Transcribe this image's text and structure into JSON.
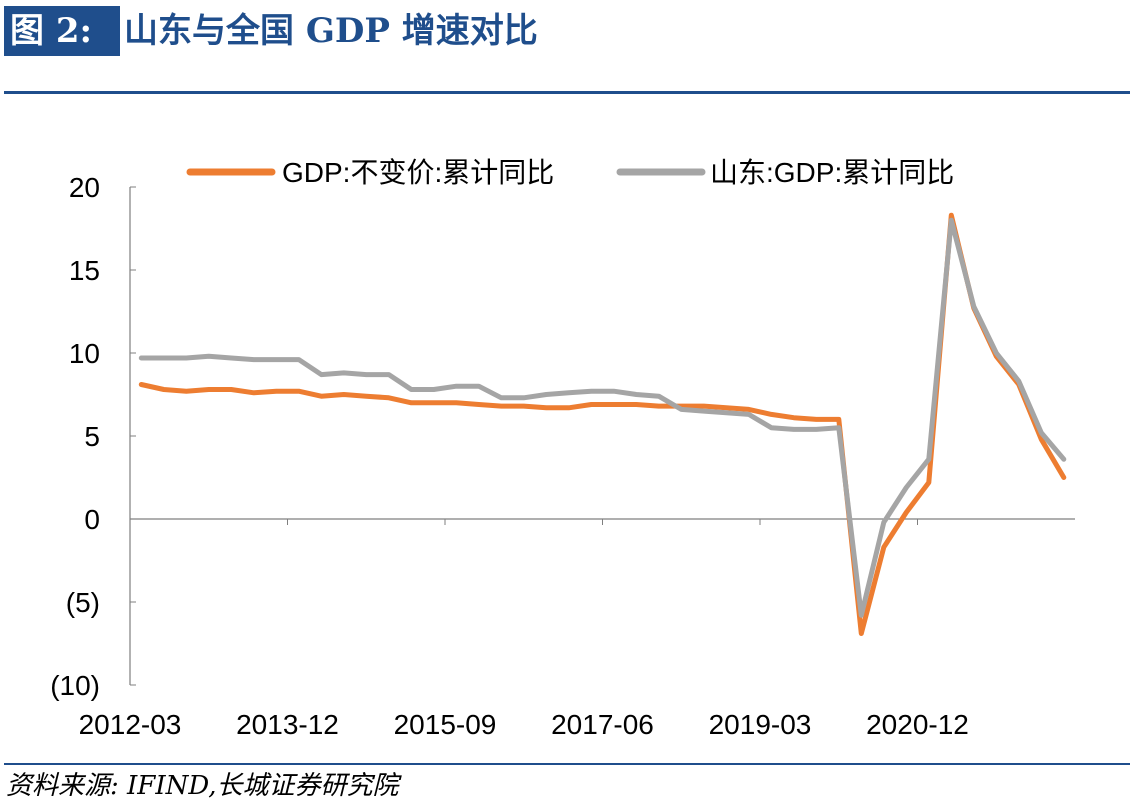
{
  "header": {
    "figure_label": "图 2:",
    "title": "山东与全国 GDP 增速对比"
  },
  "footer": {
    "source": "资料来源: IFIND,长城证券研究院"
  },
  "colors": {
    "accent": "#1f4e8c",
    "national": "#ed7d31",
    "shandong": "#a5a5a5",
    "negative_label": "#ff0000"
  },
  "chart_data": {
    "type": "line",
    "title": "",
    "xlabel": "",
    "ylabel": "",
    "ylim": [
      -10,
      20
    ],
    "yticks": [
      {
        "value": 20,
        "label": "20",
        "negative": false
      },
      {
        "value": 15,
        "label": "15",
        "negative": false
      },
      {
        "value": 10,
        "label": "10",
        "negative": false
      },
      {
        "value": 5,
        "label": "5",
        "negative": false
      },
      {
        "value": 0,
        "label": "0",
        "negative": false
      },
      {
        "value": -5,
        "label": "(5)",
        "negative": true
      },
      {
        "value": -10,
        "label": "(10)",
        "negative": true
      }
    ],
    "xticks": [
      "2012-03",
      "2013-12",
      "2015-09",
      "2017-06",
      "2019-03",
      "2020-12"
    ],
    "grid": false,
    "legend_position": "top",
    "x": [
      "2012-03",
      "2012-06",
      "2012-09",
      "2012-12",
      "2013-03",
      "2013-06",
      "2013-09",
      "2013-12",
      "2014-03",
      "2014-06",
      "2014-09",
      "2014-12",
      "2015-03",
      "2015-06",
      "2015-09",
      "2015-12",
      "2016-03",
      "2016-06",
      "2016-09",
      "2016-12",
      "2017-03",
      "2017-06",
      "2017-09",
      "2017-12",
      "2018-03",
      "2018-06",
      "2018-09",
      "2018-12",
      "2019-03",
      "2019-06",
      "2019-09",
      "2019-12",
      "2020-03",
      "2020-06",
      "2020-09",
      "2020-12",
      "2021-03",
      "2021-06",
      "2021-09",
      "2021-12",
      "2022-03",
      "2022-06"
    ],
    "series": [
      {
        "name": "GDP:不变价:累计同比",
        "color": "#ed7d31",
        "values": [
          8.1,
          7.8,
          7.7,
          7.8,
          7.8,
          7.6,
          7.7,
          7.7,
          7.4,
          7.5,
          7.4,
          7.3,
          7.0,
          7.0,
          7.0,
          6.9,
          6.8,
          6.8,
          6.7,
          6.7,
          6.9,
          6.9,
          6.9,
          6.8,
          6.8,
          6.8,
          6.7,
          6.6,
          6.3,
          6.1,
          6.0,
          6.0,
          -6.9,
          -1.7,
          0.4,
          2.2,
          18.3,
          12.7,
          9.8,
          8.1,
          4.8,
          2.5
        ]
      },
      {
        "name": "山东:GDP:累计同比",
        "color": "#a5a5a5",
        "values": [
          9.7,
          9.7,
          9.7,
          9.8,
          9.7,
          9.6,
          9.6,
          9.6,
          8.7,
          8.8,
          8.7,
          8.7,
          7.8,
          7.8,
          8.0,
          8.0,
          7.3,
          7.3,
          7.5,
          7.6,
          7.7,
          7.7,
          7.5,
          7.4,
          6.6,
          6.5,
          6.4,
          6.3,
          5.5,
          5.4,
          5.4,
          5.5,
          -5.8,
          -0.2,
          1.9,
          3.6,
          18.0,
          12.8,
          10.0,
          8.3,
          5.2,
          3.6
        ]
      }
    ]
  }
}
